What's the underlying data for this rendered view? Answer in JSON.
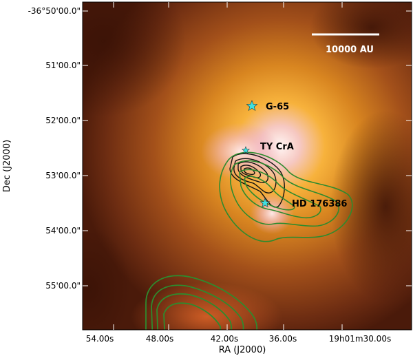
{
  "figure": {
    "xlabel": "RA (J2000)",
    "ylabel": "Dec (J2000)",
    "dec_ticks": [
      "-36°50'00.0\"",
      "51'00.0\"",
      "52'00.0\"",
      "53'00.0\"",
      "54'00.0\"",
      "55'00.0\""
    ],
    "ra_ticks": [
      "54.00s",
      "48.00s",
      "42.00s",
      "36.00s",
      "19h01m30.00s"
    ],
    "scale_bar_label": "10000 AU",
    "sources": [
      {
        "name": "G-65",
        "marker": "star-icon",
        "color": "#40e0e0"
      },
      {
        "name": "TY CrA",
        "marker": "star-icon",
        "color": "#40e0e0"
      },
      {
        "name": "HD 176386",
        "marker": "star-icon",
        "color": "#40e0e0"
      }
    ],
    "contour_colors": {
      "dark": "#111111",
      "green": "#2e8b2e"
    }
  }
}
